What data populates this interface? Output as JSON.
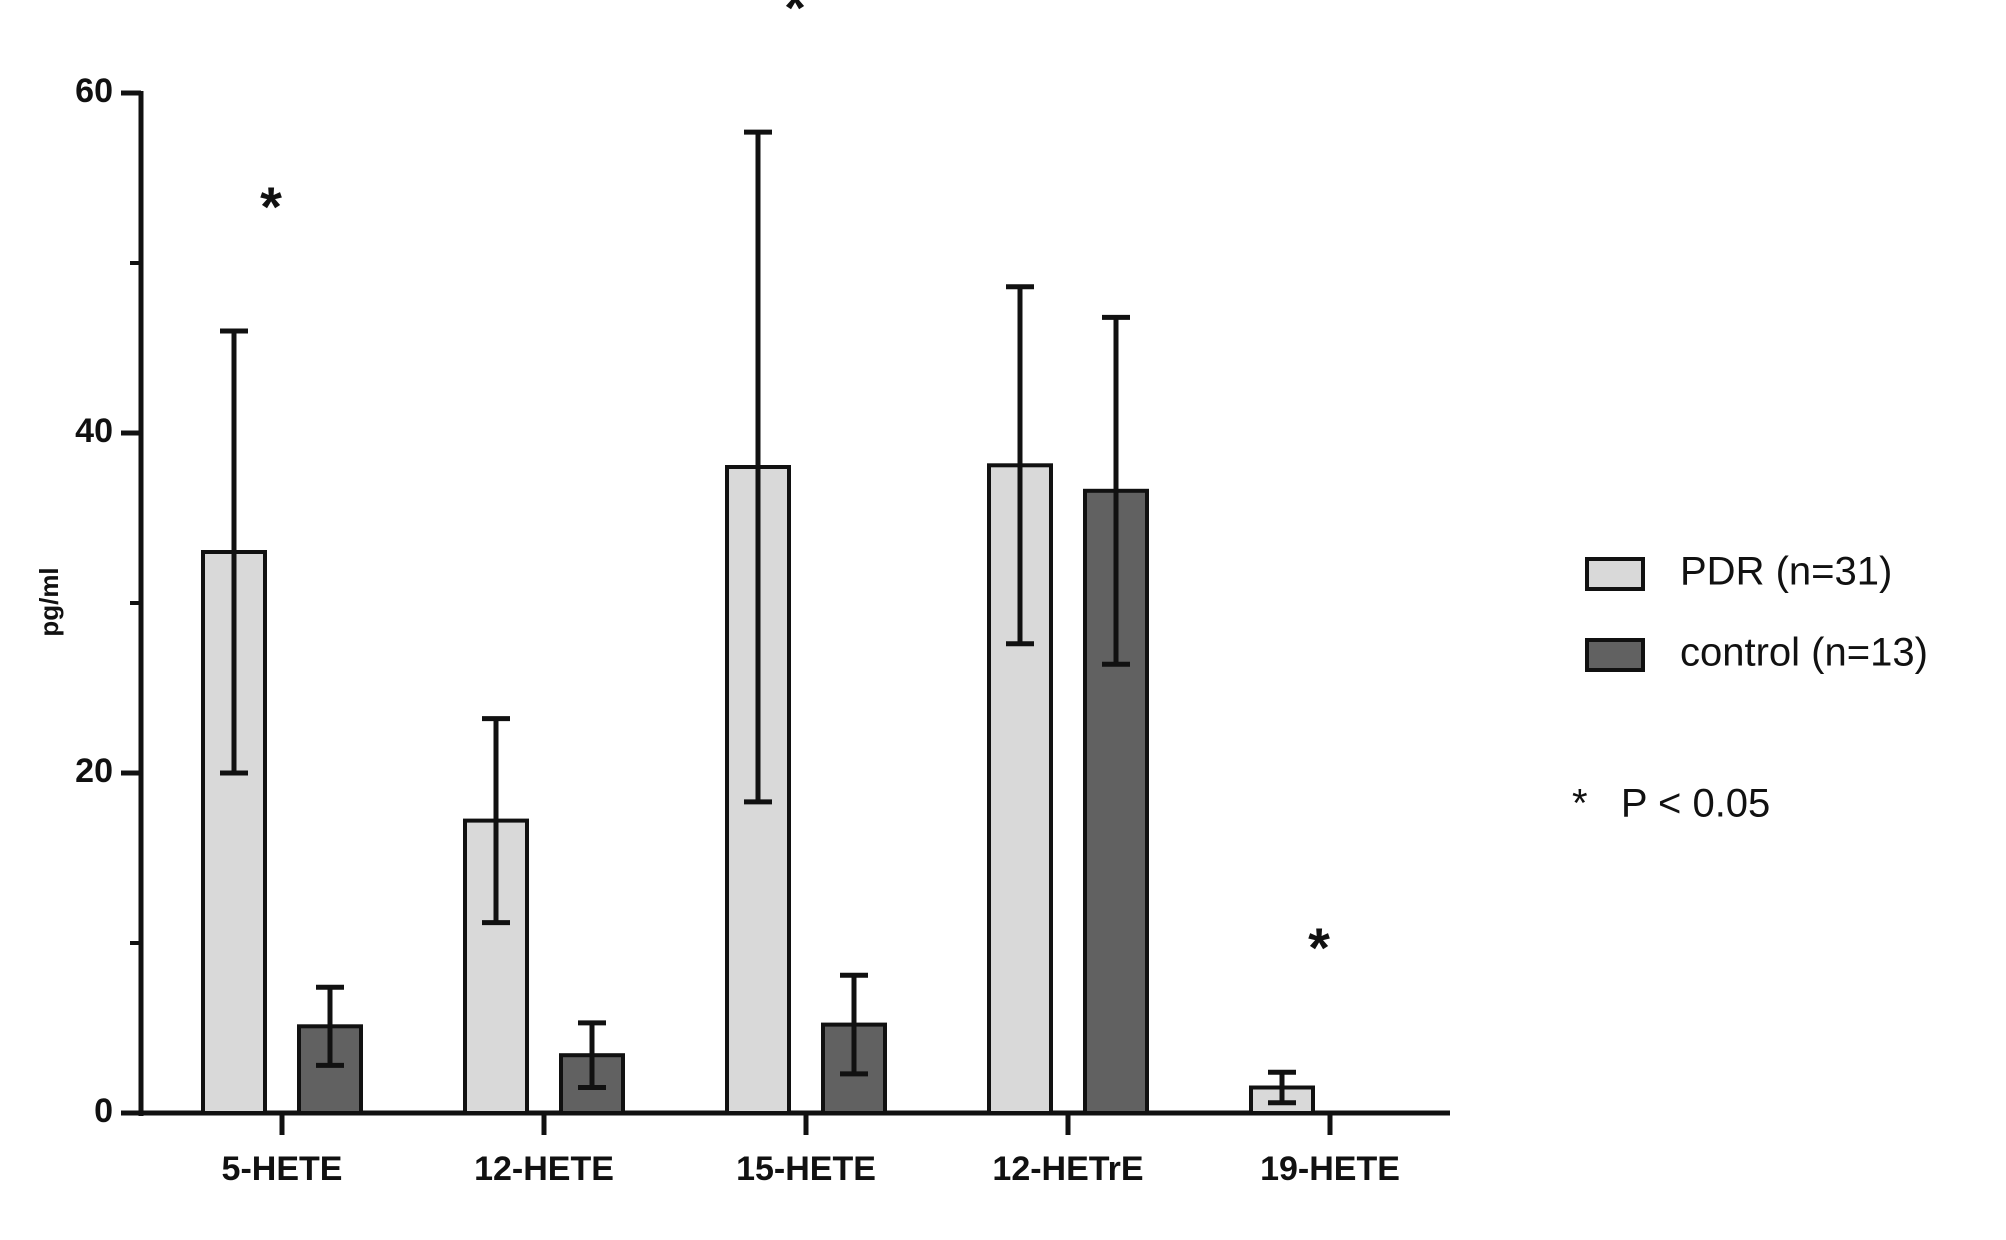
{
  "chart_data": {
    "type": "bar",
    "y_label": "pg/ml",
    "categories": [
      "5-HETE",
      "12-HETE",
      "15-HETE",
      "12-HETrE",
      "19-HETE"
    ],
    "series": [
      {
        "name": "PDR (n=31)",
        "color": "#d9d9d9",
        "values": [
          33,
          17.2,
          38,
          38.1,
          1.5
        ],
        "errors": [
          13,
          6,
          19.7,
          10.5,
          0.9
        ]
      },
      {
        "name": "control (n=13)",
        "color": "#616161",
        "values": [
          5.1,
          3.4,
          5.2,
          36.6,
          null
        ],
        "errors": [
          2.3,
          1.9,
          2.9,
          10.2,
          null
        ]
      }
    ],
    "significance": [
      "*",
      null,
      "*",
      null,
      "*"
    ],
    "note": "*   P < 0.05",
    "ylim": [
      0,
      60
    ],
    "yticks": [
      0,
      20,
      40,
      60
    ],
    "minor_yticks": [
      10,
      30,
      50
    ],
    "grid": false,
    "legend": "right"
  }
}
